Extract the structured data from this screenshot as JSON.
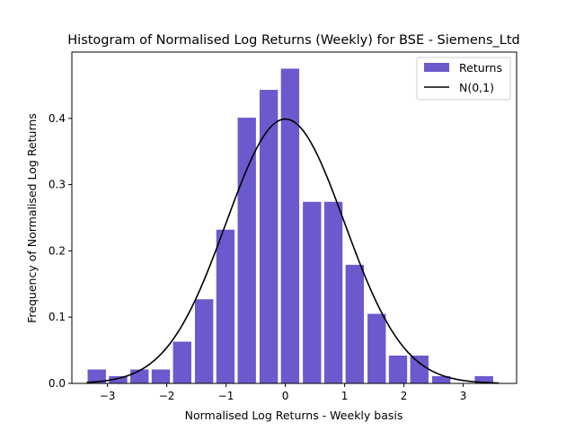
{
  "chart_data": {
    "type": "bar",
    "title": "Histogram of Normalised Log Returns (Weekly) for BSE - Siemens_Ltd",
    "xlabel": "Normalised Log Returns - Weekly basis",
    "ylabel": "Frequency of Normalised Log Returns",
    "xlim": [
      -3.6,
      3.9
    ],
    "ylim": [
      0,
      0.5
    ],
    "xticks": [
      -3,
      -2,
      -1,
      0,
      1,
      2,
      3
    ],
    "yticks": [
      0.0,
      0.1,
      0.2,
      0.3,
      0.4
    ],
    "xtick_labels": [
      "−3",
      "−2",
      "−1",
      "0",
      "1",
      "2",
      "3"
    ],
    "ytick_labels": [
      "0.0",
      "0.1",
      "0.2",
      "0.3",
      "0.4"
    ],
    "bin_width": 0.363,
    "series": [
      {
        "name": "Returns",
        "kind": "bar",
        "color": "#6a5acd",
        "bins": [
          {
            "x": -3.18,
            "value": 0.021
          },
          {
            "x": -2.82,
            "value": 0.011
          },
          {
            "x": -2.46,
            "value": 0.021
          },
          {
            "x": -2.1,
            "value": 0.021
          },
          {
            "x": -1.74,
            "value": 0.063
          },
          {
            "x": -1.37,
            "value": 0.127
          },
          {
            "x": -1.01,
            "value": 0.232
          },
          {
            "x": -0.65,
            "value": 0.401
          },
          {
            "x": -0.28,
            "value": 0.443
          },
          {
            "x": 0.08,
            "value": 0.475
          },
          {
            "x": 0.45,
            "value": 0.274
          },
          {
            "x": 0.81,
            "value": 0.274
          },
          {
            "x": 1.17,
            "value": 0.179
          },
          {
            "x": 1.54,
            "value": 0.105
          },
          {
            "x": 1.9,
            "value": 0.042
          },
          {
            "x": 2.26,
            "value": 0.042
          },
          {
            "x": 2.63,
            "value": 0.011
          },
          {
            "x": 2.99,
            "value": 0.0
          },
          {
            "x": 3.35,
            "value": 0.011
          }
        ]
      },
      {
        "name": "N(0,1)",
        "kind": "line",
        "color": "#000000",
        "x_range": [
          -3.35,
          3.6
        ]
      }
    ],
    "legend": "top-right"
  }
}
